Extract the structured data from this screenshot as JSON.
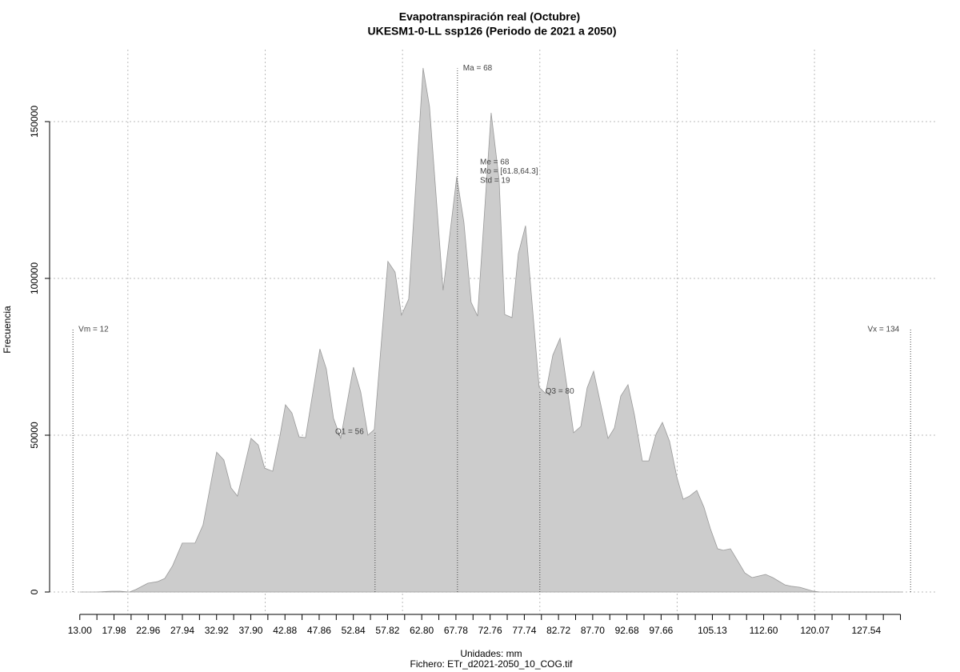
{
  "chart_data": {
    "type": "area",
    "title": "Evapotranspiración real (Octubre)",
    "subtitle": "UKESM1-0-LL ssp126 (Periodo de 2021 a 2050)",
    "x_label": "Unidades: mm",
    "caption": "Fichero: ETr_d2021-2050_10_COG.tif",
    "y_label": "Frecuencia",
    "color": "#cccccc",
    "line_color": "#999999",
    "x": [
      13.0,
      15.33,
      17.66,
      18.83,
      20.23,
      21.16,
      22.91,
      24.31,
      25.36,
      26.52,
      27.92,
      29.78,
      30.95,
      32.93,
      33.98,
      35.03,
      35.96,
      37.94,
      38.99,
      39.92,
      41.09,
      42.14,
      42.95,
      43.89,
      44.93,
      45.87,
      47.97,
      48.9,
      49.95,
      51.0,
      52.86,
      53.91,
      54.96,
      55.89,
      57.87,
      58.92,
      59.85,
      60.9,
      63.0,
      63.93,
      65.91,
      67.9,
      68.94,
      69.99,
      70.93,
      72.91,
      74.07,
      74.89,
      75.94,
      76.87,
      77.92,
      79.9,
      80.84,
      81.89,
      82.94,
      84.92,
      85.97,
      86.89,
      87.83,
      89.93,
      90.86,
      91.79,
      92.84,
      93.77,
      94.93,
      95.87,
      96.92,
      97.85,
      98.9,
      99.95,
      100.88,
      101.81,
      102.86,
      103.91,
      104.84,
      105.89,
      106.71,
      107.76,
      108.8,
      109.85,
      110.9,
      112.88,
      113.93,
      115.68,
      116.73,
      117.89,
      119.76,
      120.81,
      124.89,
      132.81
    ],
    "values": [
      0,
      0,
      250,
      250,
      0,
      800,
      2800,
      3300,
      4300,
      8400,
      15600,
      15600,
      21400,
      44600,
      42100,
      33200,
      30600,
      49000,
      46900,
      39500,
      38500,
      49700,
      59700,
      57100,
      49500,
      49200,
      77500,
      71200,
      55400,
      49000,
      71700,
      63800,
      50000,
      51800,
      105400,
      102000,
      88300,
      93400,
      167100,
      154800,
      96200,
      132400,
      117900,
      92400,
      88000,
      152800,
      131400,
      88500,
      87500,
      107900,
      116800,
      65300,
      63300,
      75500,
      80900,
      50800,
      52800,
      65100,
      70400,
      49000,
      52300,
      62500,
      66100,
      56600,
      41800,
      41800,
      50300,
      54100,
      48000,
      36700,
      29600,
      30600,
      32400,
      27000,
      20200,
      13800,
      13300,
      13800,
      10000,
      6100,
      4600,
      5600,
      4600,
      2300,
      1800,
      1500,
      300,
      0,
      0,
      0
    ],
    "xlim": [
      8.6,
      137.7
    ],
    "ylim": [
      -7140,
      172960
    ],
    "yticks": [
      0,
      50000,
      100000,
      150000
    ],
    "xticks": [
      {
        "value": 13.0,
        "label": "13.00"
      },
      {
        "value": 17.98,
        "label": "17.98"
      },
      {
        "value": 22.96,
        "label": "22.96"
      },
      {
        "value": 27.94,
        "label": "27.94"
      },
      {
        "value": 32.92,
        "label": "32.92"
      },
      {
        "value": 37.9,
        "label": "37.90"
      },
      {
        "value": 42.88,
        "label": "42.88"
      },
      {
        "value": 47.86,
        "label": "47.86"
      },
      {
        "value": 52.84,
        "label": "52.84"
      },
      {
        "value": 57.82,
        "label": "57.82"
      },
      {
        "value": 62.8,
        "label": "62.80"
      },
      {
        "value": 67.78,
        "label": "67.78"
      },
      {
        "value": 72.76,
        "label": "72.76"
      },
      {
        "value": 77.74,
        "label": "77.74"
      },
      {
        "value": 82.72,
        "label": "82.72"
      },
      {
        "value": 87.7,
        "label": "87.70"
      },
      {
        "value": 92.68,
        "label": "92.68"
      },
      {
        "value": 97.66,
        "label": "97.66"
      },
      {
        "value": 105.13,
        "label": "105.13"
      },
      {
        "value": 112.6,
        "label": "112.60"
      },
      {
        "value": 120.07,
        "label": "120.07"
      },
      {
        "value": 127.54,
        "label": "127.54"
      }
    ],
    "x_minor_ticks": [
      15.49,
      20.47,
      25.45,
      30.43,
      35.41,
      40.39,
      45.37,
      50.35,
      55.33,
      60.31,
      65.29,
      70.27,
      75.25,
      80.23,
      85.21,
      90.19,
      95.17,
      100.15,
      102.64,
      107.62,
      110.11,
      115.09,
      117.58,
      122.56,
      125.05,
      130.03,
      132.52
    ],
    "x_grid": [
      20,
      40,
      60,
      80,
      100,
      120
    ],
    "grid": true,
    "lines": [
      {
        "label": "Vm = 12",
        "x": 12,
        "y": 83700,
        "side": "right"
      },
      {
        "label": "Vx = 134",
        "x": 134,
        "y": 83700,
        "side": "left"
      },
      {
        "label": "Ma = 68",
        "x": 68,
        "y": 167000,
        "side": "right"
      },
      {
        "label": "Q1 = 56",
        "x": 56,
        "y": 51000,
        "side": "left"
      },
      {
        "label": "Q3 = 80",
        "x": 80,
        "y": 64000,
        "side": "right"
      }
    ],
    "stats": [
      "Me = 68",
      "Mo = [61.8,64.3]",
      "Std = 19"
    ]
  }
}
